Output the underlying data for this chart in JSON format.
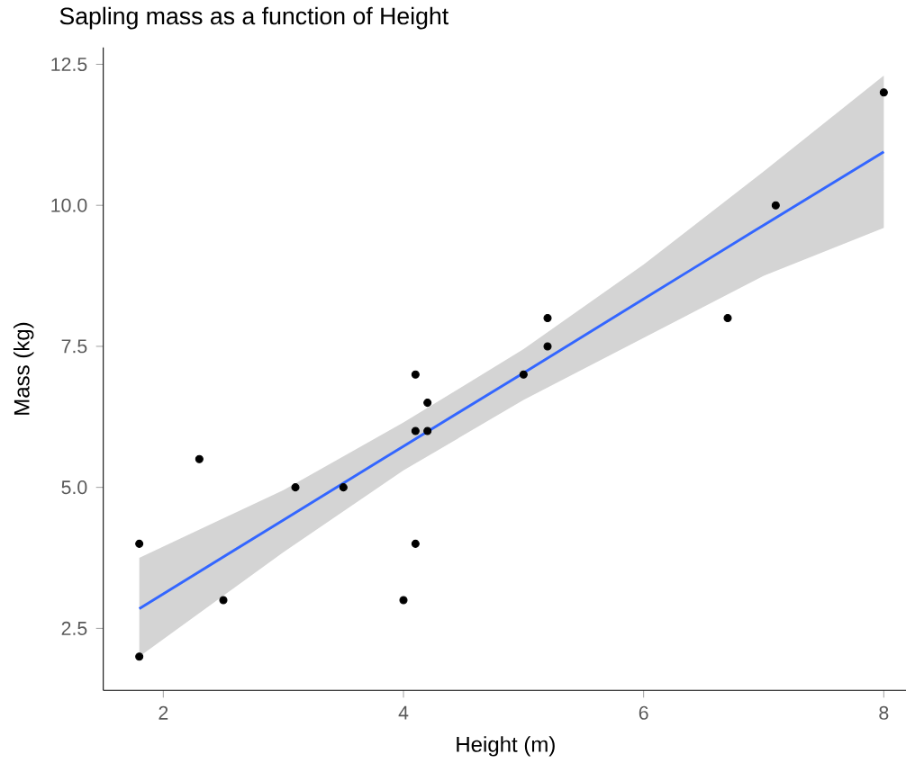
{
  "chart_data": {
    "type": "scatter",
    "title": "Sapling mass as a function of Height",
    "xlabel": "Height (m)",
    "ylabel": "Mass (kg)",
    "xlim": [
      1.5,
      8.2
    ],
    "ylim": [
      1.4,
      12.8
    ],
    "xticks": [
      2,
      4,
      6,
      8
    ],
    "yticks": [
      {
        "value": 2.5,
        "label": "2.5"
      },
      {
        "value": 5,
        "label": "5.0"
      },
      {
        "value": 7.5,
        "label": "7.5"
      },
      {
        "value": 10,
        "label": "10.0"
      },
      {
        "value": 12.5,
        "label": "12.5"
      }
    ],
    "grid": false,
    "series": [
      {
        "color": "#000000",
        "marker": "circle",
        "x": [
          1.8,
          1.8,
          2.3,
          2.5,
          3.1,
          3.5,
          4.0,
          4.1,
          4.1,
          4.1,
          4.2,
          4.2,
          5.0,
          5.2,
          5.2,
          6.7,
          7.1,
          8.0
        ],
        "values": [
          4,
          2,
          5.5,
          3,
          5,
          5,
          3,
          4,
          6,
          7,
          6.5,
          6,
          7,
          7.5,
          8,
          8,
          10,
          12
        ]
      },
      {
        "type": "line",
        "color": "#3366ff",
        "x": [
          1.8,
          3,
          4,
          5,
          6,
          7,
          8
        ],
        "values": [
          2.85,
          4.42,
          5.73,
          7.03,
          8.34,
          9.65,
          10.95
        ],
        "lower": [
          2.0,
          3.85,
          5.3,
          6.55,
          7.65,
          8.75,
          9.6
        ],
        "upper": [
          3.75,
          4.95,
          6.15,
          7.45,
          8.95,
          10.6,
          12.3
        ]
      }
    ]
  }
}
